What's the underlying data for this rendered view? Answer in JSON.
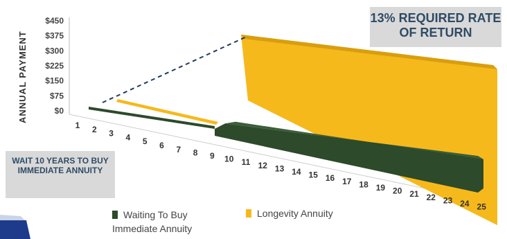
{
  "chart_data": {
    "type": "area",
    "ylabel": "ANNUAL PAYMENT",
    "yticks": [
      "$0",
      "$75",
      "$150",
      "$225",
      "$300",
      "$375",
      "$450"
    ],
    "ylim": [
      0,
      450
    ],
    "categories": [
      "1",
      "2",
      "3",
      "4",
      "5",
      "6",
      "7",
      "8",
      "9",
      "10",
      "11",
      "12",
      "13",
      "14",
      "15",
      "16",
      "17",
      "18",
      "19",
      "20",
      "21",
      "22",
      "23",
      "24",
      "25"
    ],
    "series": [
      {
        "name": "Waiting To Buy Immediate Annuity",
        "color": "#2d4a2b",
        "values": [
          0,
          0,
          0,
          0,
          0,
          0,
          0,
          0,
          0,
          0,
          65,
          65,
          65,
          65,
          65,
          65,
          65,
          65,
          65,
          65,
          65,
          65,
          65,
          65,
          65
        ]
      },
      {
        "name": "Longevity Annuity",
        "color": "#f6b91c",
        "values": [
          0,
          0,
          0,
          0,
          0,
          0,
          0,
          0,
          0,
          0,
          450,
          450,
          450,
          450,
          450,
          450,
          450,
          450,
          450,
          450,
          450,
          450,
          450,
          450,
          450
        ]
      }
    ],
    "annotations": [
      "13% REQUIRED RATE OF RETURN",
      "WAIT 10 YEARS TO BUY IMMEDIATE ANNUITY"
    ]
  },
  "callouts": {
    "rate": "13% REQUIRED RATE OF RETURN",
    "wait": "WAIT 10 YEARS TO BUY IMMEDIATE ANNUITY"
  },
  "legend": {
    "waiting_label": "Waiting To Buy Immediate Annuity",
    "longevity_label": "Longevity Annuity"
  },
  "colors": {
    "waiting": "#2d4a2b",
    "longevity": "#f6b91c",
    "callout_text": "#2f4b64"
  }
}
